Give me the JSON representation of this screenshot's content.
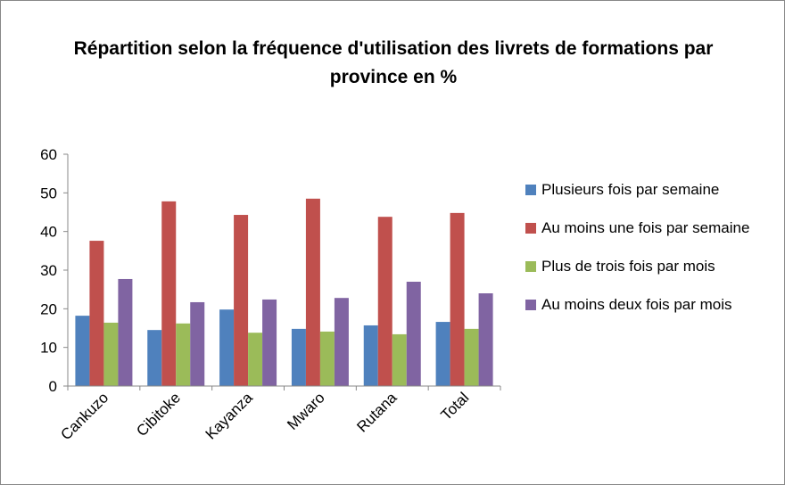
{
  "chart_data": {
    "type": "bar",
    "title": "Répartition selon la fréquence d'utilisation des livrets de formations par province en %",
    "categories": [
      "Cankuzo",
      "Cibitoke",
      "Kayanza",
      "Mwaro",
      "Rutana",
      "Total"
    ],
    "series": [
      {
        "name": "Plusieurs fois par semaine",
        "color": "#4f81bd",
        "values": [
          18.2,
          14.5,
          19.8,
          14.8,
          15.7,
          16.6
        ]
      },
      {
        "name": "Au moins une fois par semaine",
        "color": "#c0504d",
        "values": [
          37.6,
          47.8,
          44.3,
          48.5,
          43.8,
          44.8
        ]
      },
      {
        "name": "Plus de trois fois par mois",
        "color": "#9bbb59",
        "values": [
          16.4,
          16.2,
          13.8,
          14.1,
          13.4,
          14.8
        ]
      },
      {
        "name": "Au moins deux fois par mois",
        "color": "#8064a2",
        "values": [
          27.7,
          21.7,
          22.4,
          22.8,
          27.0,
          24.0
        ]
      }
    ],
    "ylim": [
      0,
      60
    ],
    "yticks": [
      0,
      10,
      20,
      30,
      40,
      50,
      60
    ],
    "grid": false,
    "legend": "right"
  }
}
